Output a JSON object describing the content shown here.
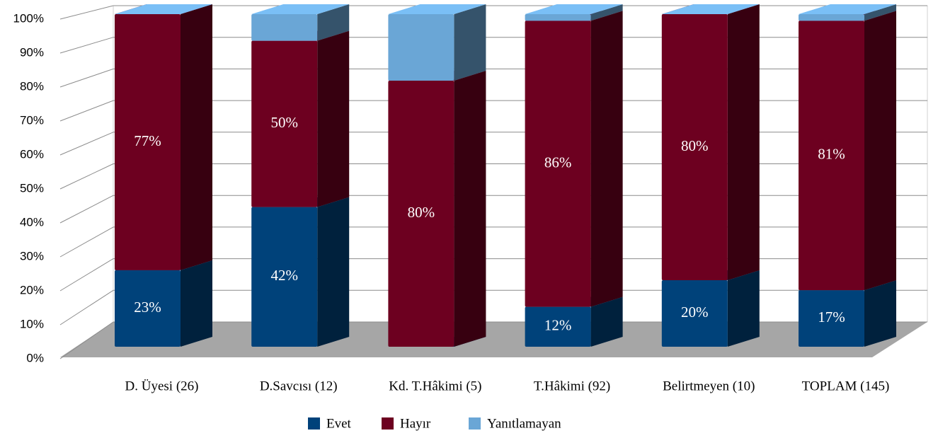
{
  "chart_data": {
    "type": "bar3d_stacked",
    "categories": [
      "D. Üyesi (26)",
      "D.Savcısı (12)",
      "Kd. T.Hâkimi (5)",
      "T.Hâkimi (92)",
      "Belirtmeyen (10)",
      "TOPLAM (145)"
    ],
    "series": [
      {
        "name": "Evet",
        "color": "#00427a",
        "values": [
          23,
          42,
          0,
          12,
          20,
          17
        ],
        "value_labels": [
          "23%",
          "42%",
          null,
          "12%",
          "20%",
          "17%"
        ]
      },
      {
        "name": "Hayır",
        "color": "#6d0020",
        "values": [
          77,
          50,
          80,
          86,
          80,
          81
        ],
        "value_labels": [
          "77%",
          "50%",
          "80%",
          "86%",
          "80%",
          "81%"
        ]
      },
      {
        "name": "Yanıtlamayan",
        "color": "#6aa6d6",
        "values": [
          0,
          8,
          20,
          2,
          0,
          2
        ]
      }
    ],
    "ylim": [
      0,
      100
    ],
    "yticks": [
      {
        "value": 0,
        "label": "0%"
      },
      {
        "value": 10,
        "label": "10%"
      },
      {
        "value": 20,
        "label": "20%"
      },
      {
        "value": 30,
        "label": "30%"
      },
      {
        "value": 40,
        "label": "40%"
      },
      {
        "value": 50,
        "label": "50%"
      },
      {
        "value": 60,
        "label": "60%"
      },
      {
        "value": 70,
        "label": "70%"
      },
      {
        "value": 80,
        "label": "80%"
      },
      {
        "value": 90,
        "label": "90%"
      },
      {
        "value": 100,
        "label": "100%"
      }
    ],
    "grid": true,
    "legend": "bottom"
  }
}
